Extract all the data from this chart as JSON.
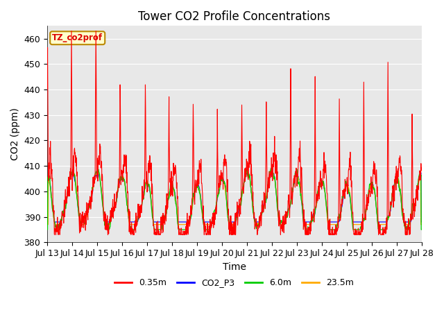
{
  "title": "Tower CO2 Profile Concentrations",
  "xlabel": "Time",
  "ylabel": "CO2 (ppm)",
  "ylim": [
    380,
    465
  ],
  "yticks": [
    380,
    390,
    400,
    410,
    420,
    430,
    440,
    450,
    460
  ],
  "x_tick_labels": [
    "Jul 13",
    "Jul 14",
    "Jul 15",
    "Jul 16",
    "Jul 17",
    "Jul 18",
    "Jul 19",
    "Jul 20",
    "Jul 21",
    "Jul 22",
    "Jul 23",
    "Jul 24",
    "Jul 25",
    "Jul 26",
    "Jul 27",
    "Jul 28"
  ],
  "series_colors": [
    "#ff0000",
    "#0000ff",
    "#00cc00",
    "#ffaa00"
  ],
  "series_labels": [
    "0.35m",
    "CO2_P3",
    "6.0m",
    "23.5m"
  ],
  "legend_label": "TZ_co2prof",
  "legend_facecolor": "#ffffcc",
  "legend_edgecolor": "#bb8800",
  "plot_facecolor": "#e8e8e8",
  "title_fontsize": 12,
  "axis_label_fontsize": 10,
  "tick_fontsize": 9,
  "n_points": 1440,
  "seed": 99
}
